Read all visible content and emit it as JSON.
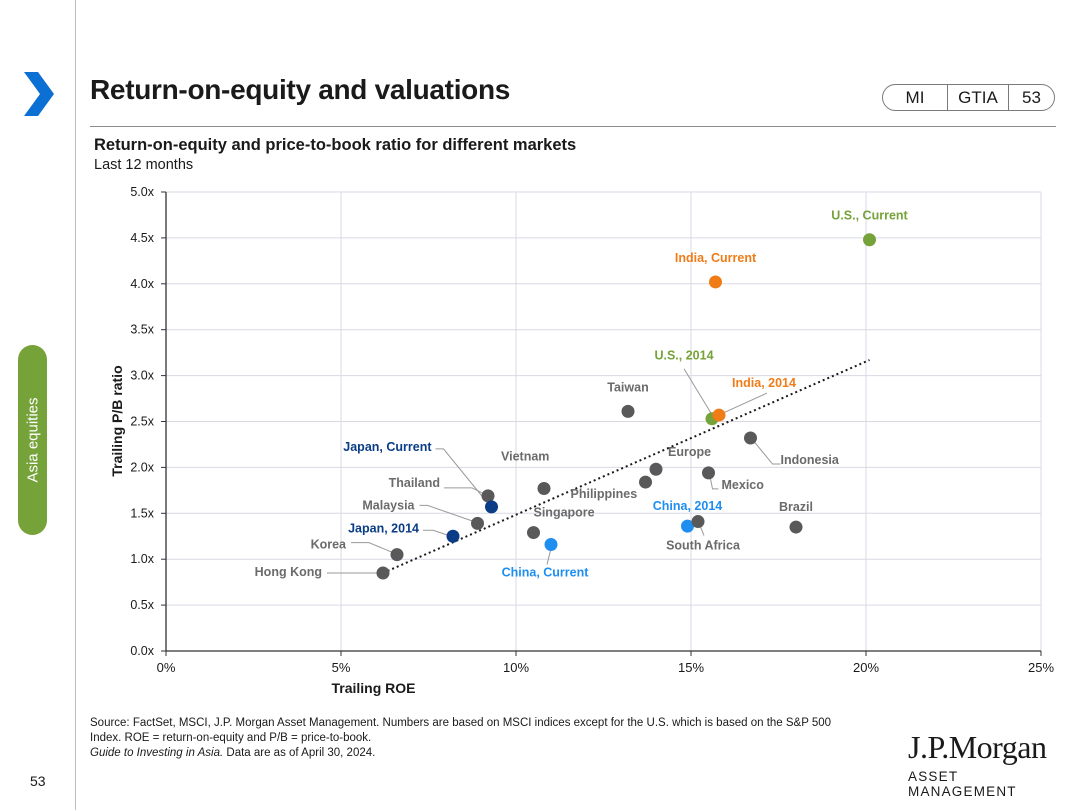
{
  "page": {
    "title": "Return-on-equity and valuations",
    "badges": [
      "MI",
      "GTIA",
      "53"
    ],
    "side_tab": "Asia equities",
    "page_number": "53",
    "source_line1": "Source: FactSet, MSCI, J.P. Morgan Asset Management. Numbers are based on MSCI indices except for the U.S. which is based on the S&P 500",
    "source_line2": "Index. ROE = return-on-equity and P/B = price-to-book.",
    "source_line3_italic": "Guide to Investing in Asia.",
    "source_line3_rest": " Data are as of April 30, 2024.",
    "logo_main": "J.P.Morgan",
    "logo_sub": "ASSET MANAGEMENT",
    "colors": {
      "accent_blue": "#0b6fd4",
      "green": "#76a23a",
      "orange": "#f07c18",
      "navy": "#0a3d86",
      "sky": "#1f8ef0",
      "grey": "#595959"
    }
  },
  "chart_data": {
    "type": "scatter",
    "title": "Return-on-equity and price-to-book ratio for different markets",
    "subtitle": "Last 12 months",
    "xlabel": "Trailing ROE",
    "ylabel": "Trailing P/B ratio",
    "xlim": [
      0,
      25
    ],
    "ylim": [
      0,
      5
    ],
    "xticks": [
      0,
      5,
      10,
      15,
      20,
      25
    ],
    "xtick_labels": [
      "0%",
      "5%",
      "10%",
      "15%",
      "20%",
      "25%"
    ],
    "yticks": [
      0,
      0.5,
      1,
      1.5,
      2,
      2.5,
      3,
      3.5,
      4,
      4.5,
      5
    ],
    "ytick_labels": [
      "0.0x",
      "0.5x",
      "1.0x",
      "1.5x",
      "2.0x",
      "2.5x",
      "3.0x",
      "3.5x",
      "4.0x",
      "4.5x",
      "5.0x"
    ],
    "trendline": {
      "x": [
        6.2,
        20.1
      ],
      "y": [
        0.85,
        3.17
      ],
      "style": "dotted"
    },
    "points": [
      {
        "label": "U.S., Current",
        "x": 20.1,
        "y": 4.48,
        "color": "#76a23a"
      },
      {
        "label": "India, Current",
        "x": 15.7,
        "y": 4.02,
        "color": "#f07c18"
      },
      {
        "label": "U.S., 2014",
        "x": 15.6,
        "y": 2.53,
        "color": "#76a23a"
      },
      {
        "label": "India, 2014",
        "x": 15.8,
        "y": 2.57,
        "color": "#f07c18"
      },
      {
        "label": "Taiwan",
        "x": 13.2,
        "y": 2.61,
        "color": "#595959"
      },
      {
        "label": "Indonesia",
        "x": 16.7,
        "y": 2.32,
        "color": "#595959"
      },
      {
        "label": "Europe",
        "x": 14.0,
        "y": 1.98,
        "color": "#595959"
      },
      {
        "label": "Mexico",
        "x": 15.5,
        "y": 1.94,
        "color": "#595959"
      },
      {
        "label": "Philippines",
        "x": 13.7,
        "y": 1.84,
        "color": "#595959"
      },
      {
        "label": "Vietnam",
        "x": 10.8,
        "y": 1.77,
        "color": "#595959"
      },
      {
        "label": "Thailand",
        "x": 9.2,
        "y": 1.69,
        "color": "#595959"
      },
      {
        "label": "Japan, Current",
        "x": 9.3,
        "y": 1.57,
        "color": "#0a3d86"
      },
      {
        "label": "Malaysia",
        "x": 8.9,
        "y": 1.39,
        "color": "#595959"
      },
      {
        "label": "Singapore",
        "x": 10.5,
        "y": 1.29,
        "color": "#595959"
      },
      {
        "label": "China, 2014",
        "x": 14.9,
        "y": 1.36,
        "color": "#1f8ef0"
      },
      {
        "label": "South Africa",
        "x": 15.2,
        "y": 1.41,
        "color": "#595959"
      },
      {
        "label": "Brazil",
        "x": 18.0,
        "y": 1.35,
        "color": "#595959"
      },
      {
        "label": "Japan, 2014",
        "x": 8.2,
        "y": 1.25,
        "color": "#0a3d86"
      },
      {
        "label": "China, Current",
        "x": 11.0,
        "y": 1.16,
        "color": "#1f8ef0"
      },
      {
        "label": "Korea",
        "x": 6.6,
        "y": 1.05,
        "color": "#595959"
      },
      {
        "label": "Hong Kong",
        "x": 6.2,
        "y": 0.85,
        "color": "#595959"
      }
    ]
  }
}
